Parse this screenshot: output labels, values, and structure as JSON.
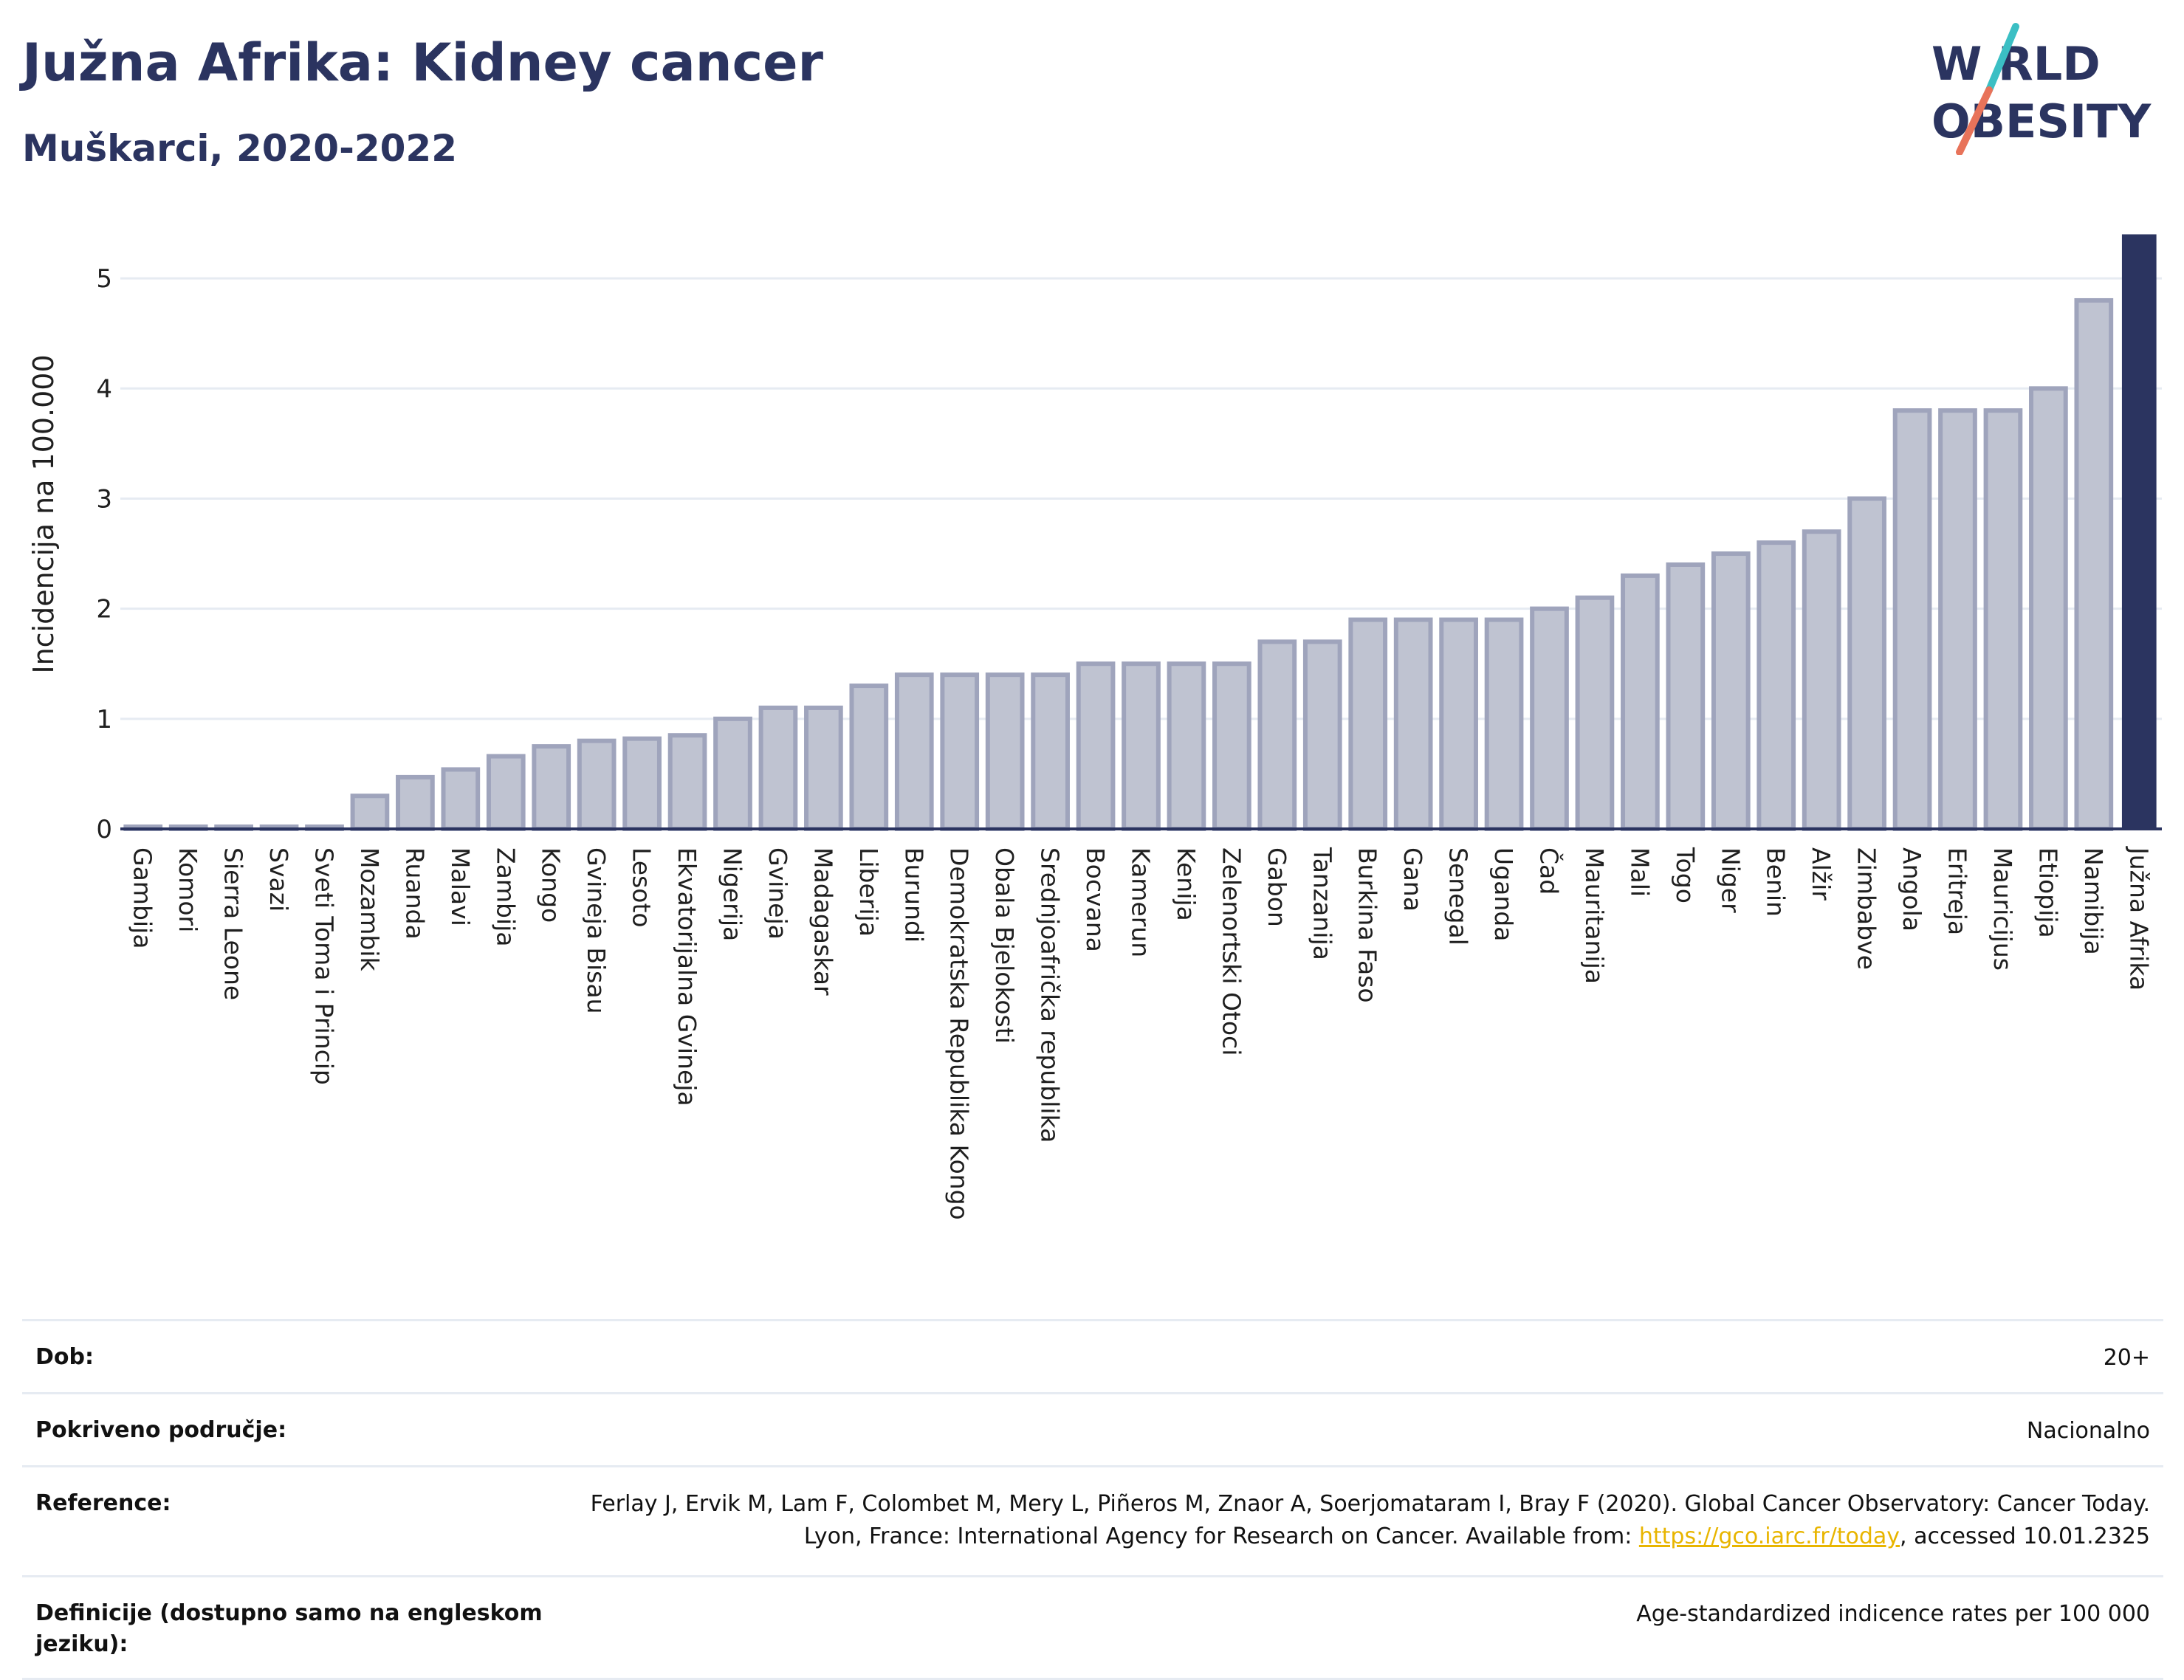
{
  "header": {
    "title": "Južna Afrika: Kidney cancer",
    "subtitle": "Muškarci, 2020-2022"
  },
  "logo": {
    "line1": "W  RLD",
    "line2": "OBESITY",
    "colors": {
      "text": "#2b3460",
      "slash_top": "#3bbfc4",
      "slash_bottom": "#e8735a"
    }
  },
  "colors": {
    "bar_fill": "#bfc3d1",
    "bar_stroke": "#9fa4bc",
    "highlight": "#2b3460",
    "grid": "#e6ebf2",
    "axis": "#2b3460"
  },
  "chart_data": {
    "type": "bar",
    "ylabel": "Incidencija na 100.000",
    "ylim": [
      0,
      5.45
    ],
    "yticks": [
      0,
      1,
      2,
      3,
      4,
      5
    ],
    "grid": true,
    "highlight_category": "Južna Afrika",
    "categories": [
      "Gambija",
      "Komori",
      "Sierra Leone",
      "Svazi",
      "Sveti Toma i Princip",
      "Mozambik",
      "Ruanda",
      "Malavi",
      "Zambija",
      "Kongo",
      "Gvineja Bisau",
      "Lesoto",
      "Ekvatorijalna Gvineja",
      "Nigerija",
      "Gvineja",
      "Madagaskar",
      "Liberija",
      "Burundi",
      "Demokratska Republika Kongo",
      "Obala Bjelokosti",
      "Srednjoafrička republika",
      "Bocvana",
      "Kamerun",
      "Kenija",
      "Zelenortski Otoci",
      "Gabon",
      "Tanzanija",
      "Burkina Faso",
      "Gana",
      "Senegal",
      "Uganda",
      "Čad",
      "Mauritanija",
      "Mali",
      "Togo",
      "Niger",
      "Benin",
      "Alžir",
      "Zimbabve",
      "Angola",
      "Eritreja",
      "Mauricijus",
      "Etiopija",
      "Namibija",
      "Južna Afrika"
    ],
    "values": [
      0.02,
      0.02,
      0.02,
      0.02,
      0.02,
      0.3,
      0.47,
      0.54,
      0.66,
      0.75,
      0.8,
      0.82,
      0.85,
      1.0,
      1.1,
      1.1,
      1.3,
      1.4,
      1.4,
      1.4,
      1.4,
      1.5,
      1.5,
      1.5,
      1.5,
      1.7,
      1.7,
      1.9,
      1.9,
      1.9,
      1.9,
      2.0,
      2.1,
      2.3,
      2.4,
      2.5,
      2.6,
      2.7,
      3.0,
      3.8,
      3.8,
      3.8,
      4.0,
      4.8,
      5.4
    ]
  },
  "info": {
    "age_label": "Dob:",
    "age_value": "20+",
    "coverage_label": "Pokriveno područje:",
    "coverage_value": "Nacionalno",
    "reference_label": "Reference:",
    "reference_text_1": "Ferlay J, Ervik M, Lam F, Colombet M, Mery L, Piñeros M, Znaor A, Soerjomataram I, Bray F (2020). Global Cancer Observatory: Cancer Today. Lyon, France: International Agency for Research on Cancer. Available from: ",
    "reference_link": "https://gco.iarc.fr/today",
    "reference_text_2": ", accessed 10.01.2325",
    "definitions_label": "Definicije (dostupno samo na engleskom jeziku):",
    "definitions_value": "Age-standardized indicence rates per 100 000"
  }
}
